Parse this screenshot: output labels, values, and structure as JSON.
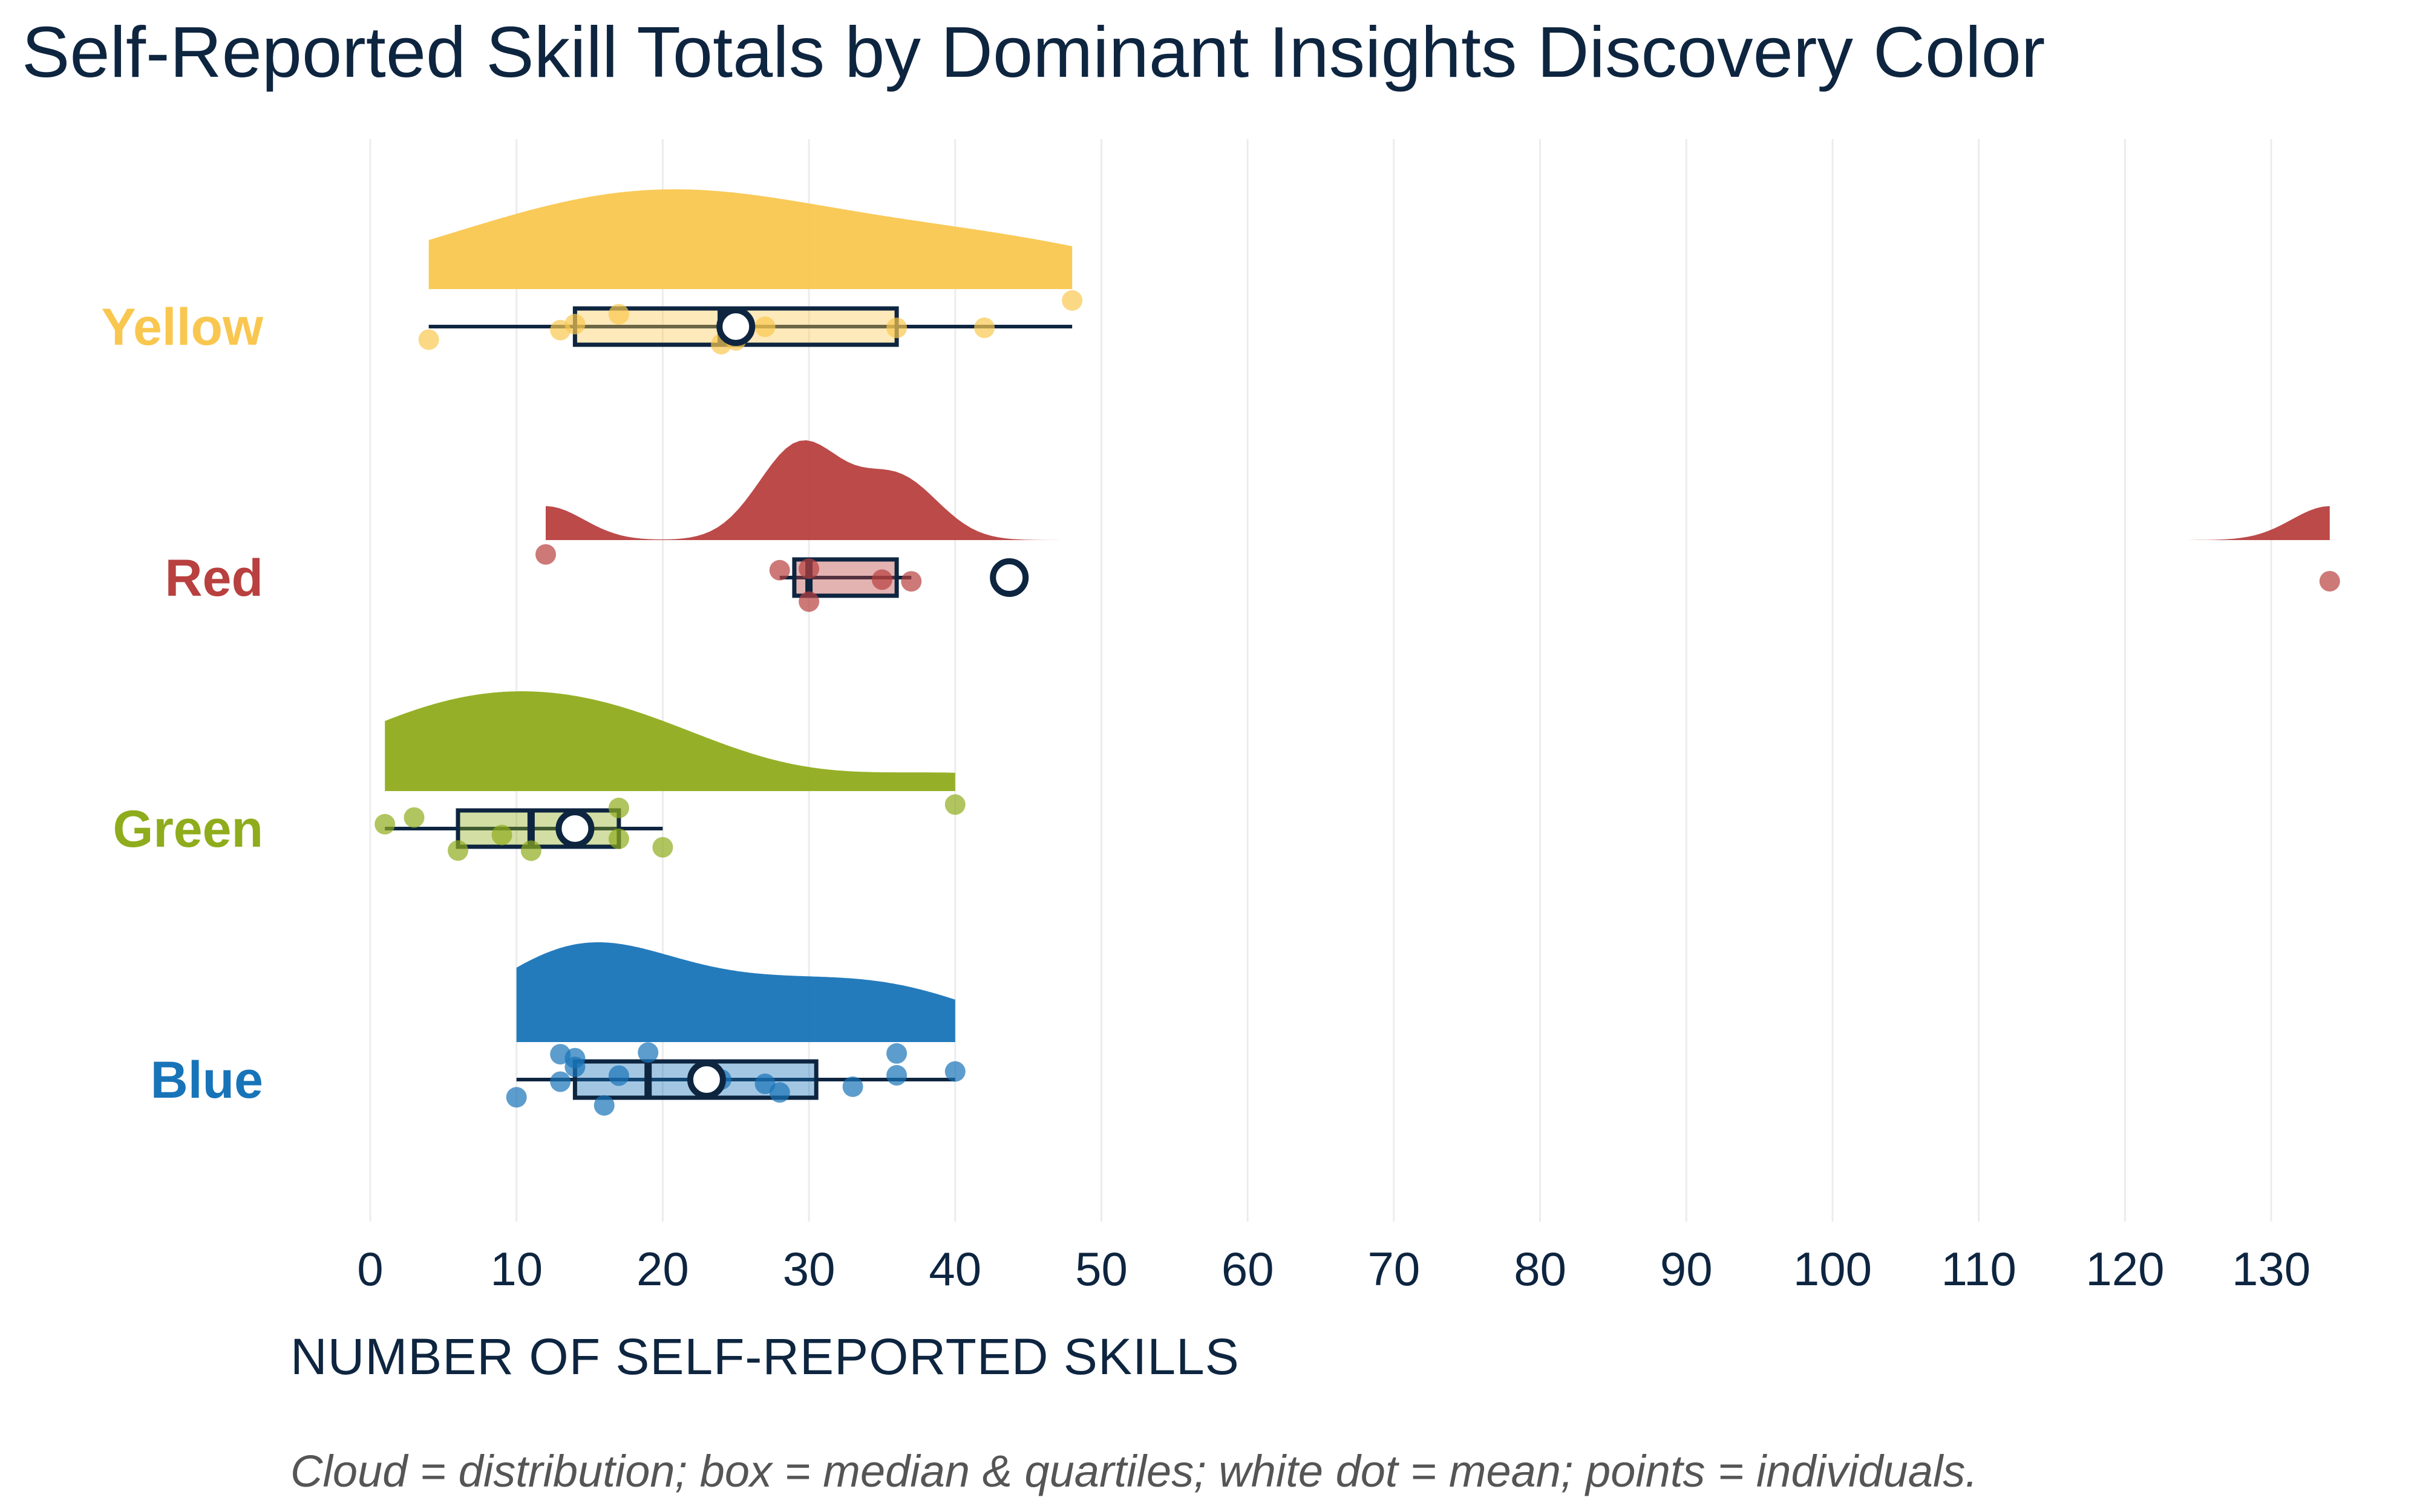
{
  "chart_data": {
    "type": "raincloud",
    "title": "Self-Reported Skill Totals by Dominant Insights Discovery Color",
    "xlabel": "NUMBER OF SELF-REPORTED SKILLS",
    "ylabel": "",
    "caption": "Cloud = distribution; box = median & quartiles; white dot = mean; points = individuals.",
    "xlim": [
      -3,
      136
    ],
    "xticks": [
      0,
      10,
      20,
      30,
      40,
      50,
      60,
      70,
      80,
      90,
      100,
      110,
      120,
      130
    ],
    "grid": true,
    "groups": [
      {
        "name": "Yellow",
        "color": "#f9c74f",
        "points": [
          4,
          13,
          14,
          17,
          24,
          25,
          27,
          36,
          42,
          48
        ],
        "box": {
          "q1": 14,
          "median": 24,
          "q3": 36,
          "whisker_low": 4,
          "whisker_high": 48
        },
        "mean": 25
      },
      {
        "name": "Red",
        "color": "#b8403f",
        "points": [
          12,
          28,
          30,
          30,
          35,
          37,
          134
        ],
        "box": {
          "q1": 29,
          "median": 30,
          "q3": 36,
          "whisker_low": 28,
          "whisker_high": 37
        },
        "mean": 43.7
      },
      {
        "name": "Green",
        "color": "#8fac1c",
        "points": [
          1,
          3,
          6,
          9,
          11,
          17,
          17,
          20,
          40
        ],
        "box": {
          "q1": 6,
          "median": 11,
          "q3": 17,
          "whisker_low": 1,
          "whisker_high": 20
        },
        "mean": 14
      },
      {
        "name": "Blue",
        "color": "#1874b8",
        "points": [
          10,
          13,
          13,
          14,
          14,
          16,
          17,
          19,
          24,
          27,
          28,
          33,
          36,
          36,
          40
        ],
        "box": {
          "q1": 14,
          "median": 19,
          "q3": 30.5,
          "whisker_low": 10,
          "whisker_high": 40
        },
        "mean": 23
      }
    ]
  }
}
